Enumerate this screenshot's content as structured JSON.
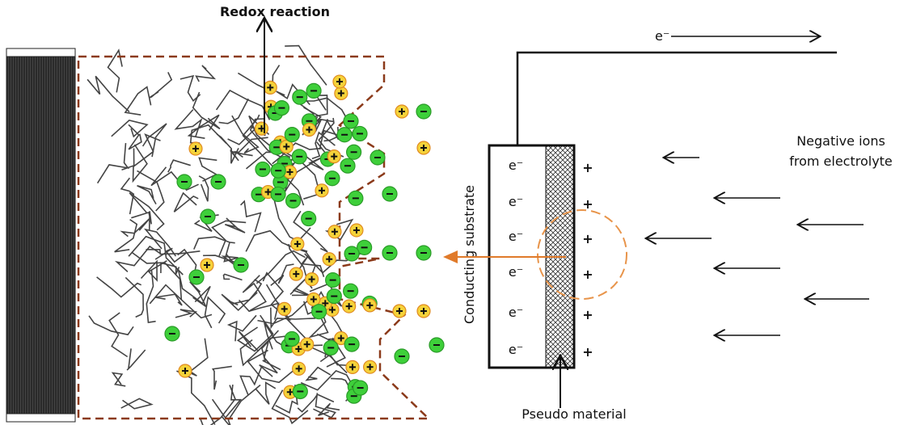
{
  "labels": {
    "redox": "Redox reaction",
    "electron_top": "e⁻",
    "ions": [
      "Negative ions",
      "from electrolyte"
    ],
    "substrate": "Conducting substrate",
    "pseudo": "Pseudo material"
  },
  "electrons": [
    "e⁻",
    "e⁻",
    "e⁻",
    "e⁻",
    "e⁻",
    "e⁻"
  ],
  "charges": [
    "+",
    "+",
    "+",
    "+",
    "+",
    "+"
  ]
}
